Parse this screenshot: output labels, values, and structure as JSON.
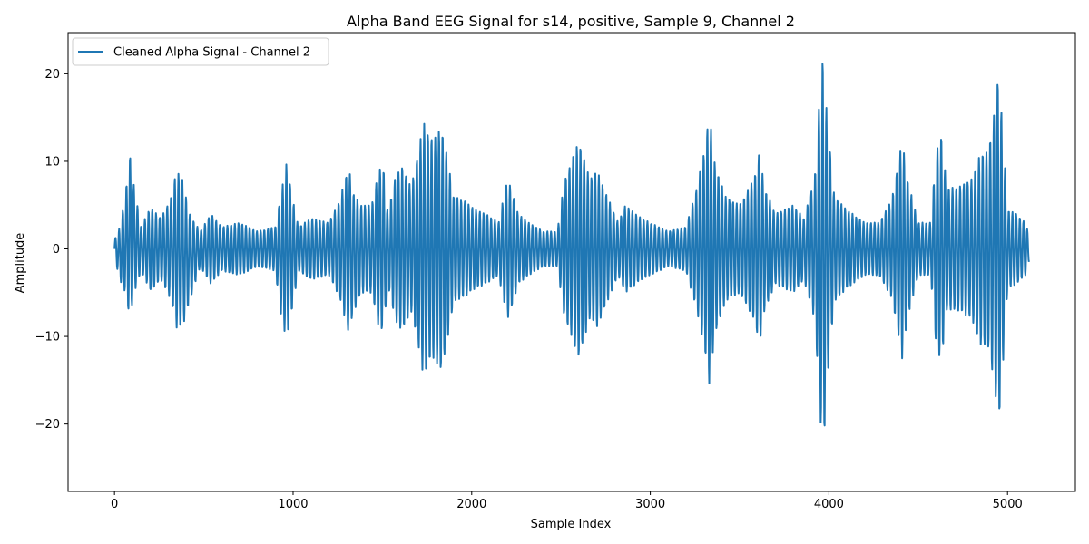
{
  "chart_data": {
    "type": "line",
    "title": "Alpha Band EEG Signal for s14, positive, Sample 9, Channel 2",
    "xlabel": "Sample Index",
    "ylabel": "Amplitude",
    "xlim": [
      -260,
      5380
    ],
    "ylim": [
      -27.7,
      24.7
    ],
    "xticks": [
      0,
      1000,
      2000,
      3000,
      4000,
      5000
    ],
    "xtick_labels": [
      "0",
      "1000",
      "2000",
      "3000",
      "4000",
      "5000"
    ],
    "yticks": [
      -20,
      -10,
      0,
      10,
      20
    ],
    "ytick_labels": [
      "−20",
      "−10",
      "0",
      "10",
      "20"
    ],
    "grid": false,
    "legend_position": "upper-left",
    "series": [
      {
        "name": "Cleaned Alpha Signal - Channel 2",
        "color": "#1f77b4",
        "envelope": {
          "x": [
            0,
            30,
            60,
            85,
            110,
            150,
            200,
            260,
            320,
            345,
            380,
            420,
            480,
            540,
            600,
            700,
            800,
            900,
            940,
            965,
            990,
            1030,
            1100,
            1200,
            1260,
            1310,
            1335,
            1380,
            1440,
            1480,
            1505,
            1530,
            1570,
            1610,
            1660,
            1700,
            1730,
            1760,
            1790,
            1830,
            1850,
            1900,
            1960,
            2020,
            2080,
            2150,
            2200,
            2220,
            2260,
            2320,
            2400,
            2480,
            2520,
            2560,
            2600,
            2660,
            2700,
            2760,
            2820,
            2860,
            2950,
            3050,
            3100,
            3200,
            3260,
            3300,
            3330,
            3360,
            3420,
            3500,
            3580,
            3610,
            3640,
            3700,
            3800,
            3860,
            3920,
            3950,
            3965,
            3990,
            4030,
            4100,
            4200,
            4280,
            4350,
            4390,
            4410,
            4440,
            4500,
            4570,
            4600,
            4630,
            4660,
            4720,
            4800,
            4850,
            4890,
            4930,
            4950,
            4975,
            5000,
            5050,
            5100,
            5120
          ],
          "a": [
            1,
            3,
            5.5,
            9.5,
            6,
            2.5,
            4.8,
            3.5,
            6,
            9,
            8.5,
            5,
            2,
            4,
            2.5,
            3,
            2,
            2.5,
            8,
            10,
            7,
            2.5,
            3.5,
            3,
            5.5,
            9.5,
            7,
            5,
            5,
            9,
            9.5,
            4,
            8,
            9.5,
            7,
            11,
            14.5,
            13,
            12.5,
            14,
            12,
            6,
            5.5,
            4.5,
            4,
            3,
            8,
            7,
            4,
            3,
            2,
            2,
            8,
            10,
            12.5,
            8,
            9,
            6,
            3,
            5,
            3.5,
            2.5,
            2,
            2.5,
            7,
            11,
            15.5,
            10,
            6,
            5,
            8,
            11,
            7,
            4,
            5,
            3.5,
            8,
            18,
            23.5,
            15,
            6,
            4.5,
            3,
            3,
            5.5,
            10,
            12.5,
            8,
            3,
            3,
            11,
            13,
            7,
            7,
            8,
            11,
            11,
            16,
            20.5,
            13,
            4.5,
            4,
            3,
            1.5
          ],
          "o": [
            0,
            -0.5,
            0.5,
            1.5,
            1,
            0,
            0,
            0,
            0,
            0,
            -0.5,
            -1,
            0,
            0,
            0,
            0,
            0,
            0,
            -0.8,
            0,
            -0.5,
            0,
            0,
            0,
            0,
            0,
            -0.5,
            0,
            0,
            0,
            0,
            0,
            0,
            0,
            0,
            0,
            0,
            0,
            0,
            0,
            0,
            0,
            0,
            0,
            0,
            0,
            0,
            0,
            0,
            0,
            0,
            0,
            0,
            0,
            0,
            0,
            0,
            0,
            0,
            0,
            0,
            0,
            0,
            0,
            0,
            0,
            0,
            0,
            0,
            0,
            0,
            0,
            0,
            0,
            0,
            0,
            0,
            0,
            -1.5,
            0,
            0,
            0,
            0,
            0,
            0,
            0,
            0,
            0,
            0,
            0,
            0,
            0,
            0,
            0,
            0,
            0,
            0,
            0,
            0,
            0,
            0,
            0,
            0,
            0
          ]
        },
        "cycles_per_1000_samples": 48,
        "x_start": 0,
        "x_end": 5120,
        "sample_step": 2
      }
    ]
  }
}
